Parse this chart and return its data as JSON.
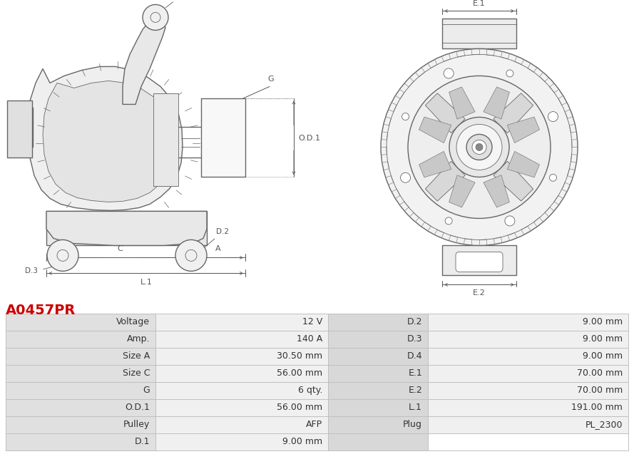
{
  "title": "A0457PR",
  "title_color": "#cc0000",
  "bg_color": "#ffffff",
  "table_rows": [
    [
      "Voltage",
      "12 V",
      "D.2",
      "9.00 mm"
    ],
    [
      "Amp.",
      "140 A",
      "D.3",
      "9.00 mm"
    ],
    [
      "Size A",
      "30.50 mm",
      "D.4",
      "9.00 mm"
    ],
    [
      "Size C",
      "56.00 mm",
      "E.1",
      "70.00 mm"
    ],
    [
      "G",
      "6 qty.",
      "E.2",
      "70.00 mm"
    ],
    [
      "O.D.1",
      "56.00 mm",
      "L.1",
      "191.00 mm"
    ],
    [
      "Pulley",
      "AFP",
      "Plug",
      "PL_2300"
    ],
    [
      "D.1",
      "9.00 mm",
      "",
      ""
    ]
  ],
  "col_bg_label": "#e0e0e0",
  "col_bg_value": "#f0f0f0",
  "col_bg_mid": "#d8d8d8",
  "table_line_color": "#c0c0c0",
  "lc": "#666666",
  "lc_dim": "#555555"
}
